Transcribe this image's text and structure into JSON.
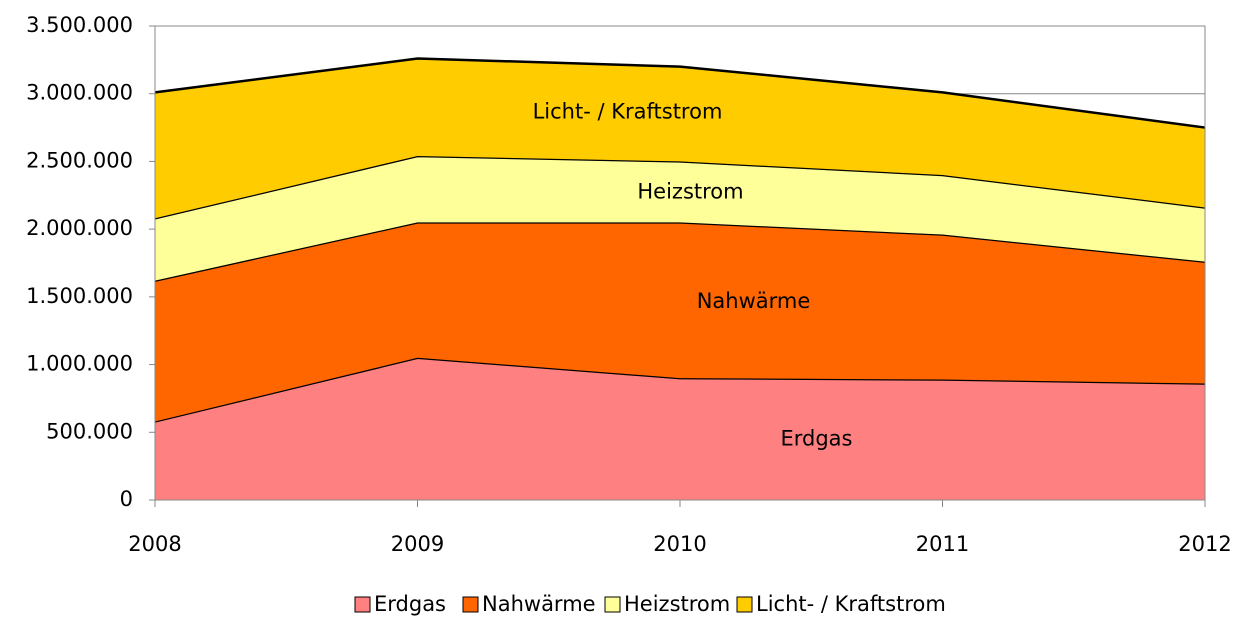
{
  "chart_data": {
    "type": "area",
    "x": [
      2008,
      2009,
      2010,
      2011,
      2012
    ],
    "series": [
      {
        "name": "Erdgas",
        "color": "#ff8080",
        "values": [
          580000,
          1050000,
          900000,
          890000,
          860000
        ]
      },
      {
        "name": "Nahwärme",
        "color": "#ff6600",
        "values": [
          1040000,
          1000000,
          1150000,
          1070000,
          900000
        ]
      },
      {
        "name": "Heizstrom",
        "color": "#ffff99",
        "values": [
          460000,
          490000,
          450000,
          440000,
          400000
        ]
      },
      {
        "name": "Licht- / Kraftstrom",
        "color": "#ffcc00",
        "values": [
          930000,
          720000,
          700000,
          610000,
          590000
        ]
      }
    ],
    "xlim": [
      2008,
      2012
    ],
    "xticks": [
      2008,
      2009,
      2010,
      2011,
      2012
    ],
    "ylim": [
      0,
      3500000
    ],
    "yticks": [
      0,
      {
        "value": 500000,
        "label": "500.000"
      },
      {
        "value": 1000000,
        "label": "1.000.000"
      },
      {
        "value": 1500000,
        "label": "1.500.000"
      },
      {
        "value": 2000000,
        "label": "2.000.000"
      },
      {
        "value": 2500000,
        "label": "2.500.000"
      },
      {
        "value": 3000000,
        "label": "3.000.000"
      },
      {
        "value": 3500000,
        "label": "3.500.000"
      }
    ],
    "grid": true,
    "legend": "bottom",
    "stacked": true
  }
}
